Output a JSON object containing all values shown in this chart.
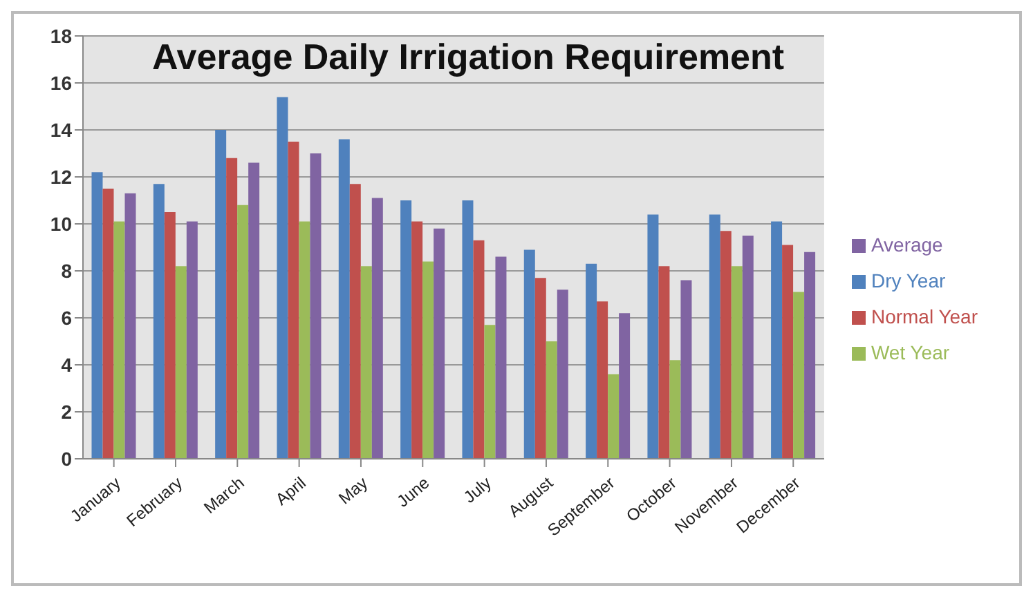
{
  "chart_data": {
    "type": "bar",
    "title": "Average Daily Irrigation Requirement",
    "categories": [
      "January",
      "February",
      "March",
      "April",
      "May",
      "June",
      "July",
      "August",
      "September",
      "October",
      "November",
      "December"
    ],
    "series": [
      {
        "name": "Dry Year",
        "color": "#4f81bd",
        "values": [
          12.2,
          11.7,
          14.0,
          15.4,
          13.6,
          11.0,
          11.0,
          8.9,
          8.3,
          10.4,
          10.4,
          10.1
        ]
      },
      {
        "name": "Normal Year",
        "color": "#c0504d",
        "values": [
          11.5,
          10.5,
          12.8,
          13.5,
          11.7,
          10.1,
          9.3,
          7.7,
          6.7,
          8.2,
          9.7,
          9.1
        ]
      },
      {
        "name": "Wet Year",
        "color": "#9bbb59",
        "values": [
          10.1,
          8.2,
          10.8,
          10.1,
          8.2,
          8.4,
          5.7,
          5.0,
          3.6,
          4.2,
          8.2,
          7.1
        ]
      },
      {
        "name": "Average",
        "color": "#8064a2",
        "values": [
          11.3,
          10.1,
          12.6,
          13.0,
          11.1,
          9.8,
          8.6,
          7.2,
          6.2,
          7.6,
          9.5,
          8.8
        ]
      }
    ],
    "ylim": [
      0,
      18
    ],
    "yticks": [
      0,
      2,
      4,
      6,
      8,
      10,
      12,
      14,
      16,
      18
    ],
    "grid": "y",
    "legend": "right"
  }
}
